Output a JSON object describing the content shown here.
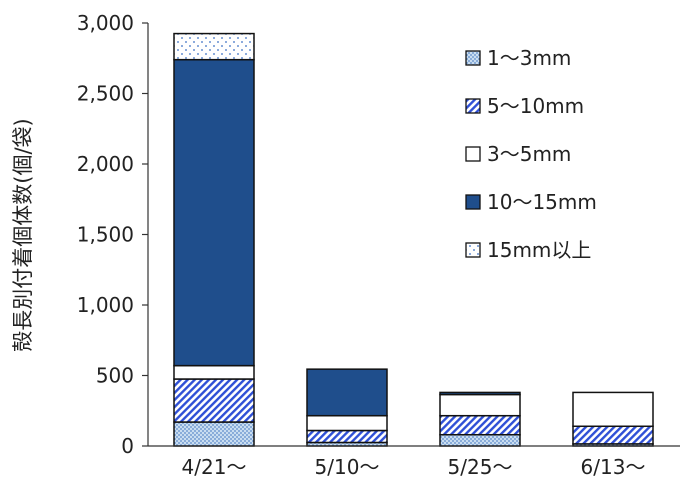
{
  "chart_data": {
    "type": "bar",
    "stacked": true,
    "categories": [
      "4/21～",
      "5/10～",
      "5/25～",
      "6/13～"
    ],
    "ylabel": "殻長別付着個体数(個/袋)",
    "ylim": [
      0,
      3000
    ],
    "yticks": [
      0,
      500,
      1000,
      1500,
      2000,
      2500,
      3000
    ],
    "ytick_labels": [
      "0",
      "500",
      "1,000",
      "1,500",
      "2,000",
      "2,500",
      "3,000"
    ],
    "grid": false,
    "legend_position": "top-right",
    "series": [
      {
        "name": "1～3mm",
        "values": [
          170,
          25,
          80,
          15
        ],
        "color": "#9dc3e6",
        "pattern": "dots-fine"
      },
      {
        "name": "5～10mm",
        "values": [
          305,
          85,
          135,
          125
        ],
        "color": "#2e4fd6",
        "pattern": "diagonal"
      },
      {
        "name": "3～5mm",
        "values": [
          95,
          105,
          150,
          240
        ],
        "color": "#ffffff",
        "pattern": "none"
      },
      {
        "name": "10～15mm",
        "values": [
          2170,
          330,
          15,
          0
        ],
        "color": "#1f4e8c",
        "pattern": "solid"
      },
      {
        "name": "15mm以上",
        "values": [
          185,
          0,
          0,
          0
        ],
        "color": "#7a9ed8",
        "pattern": "dots-sparse"
      }
    ],
    "legend_order": [
      "1～3mm",
      "5～10mm",
      "3～5mm",
      "10～15mm",
      "15mm以上"
    ]
  }
}
